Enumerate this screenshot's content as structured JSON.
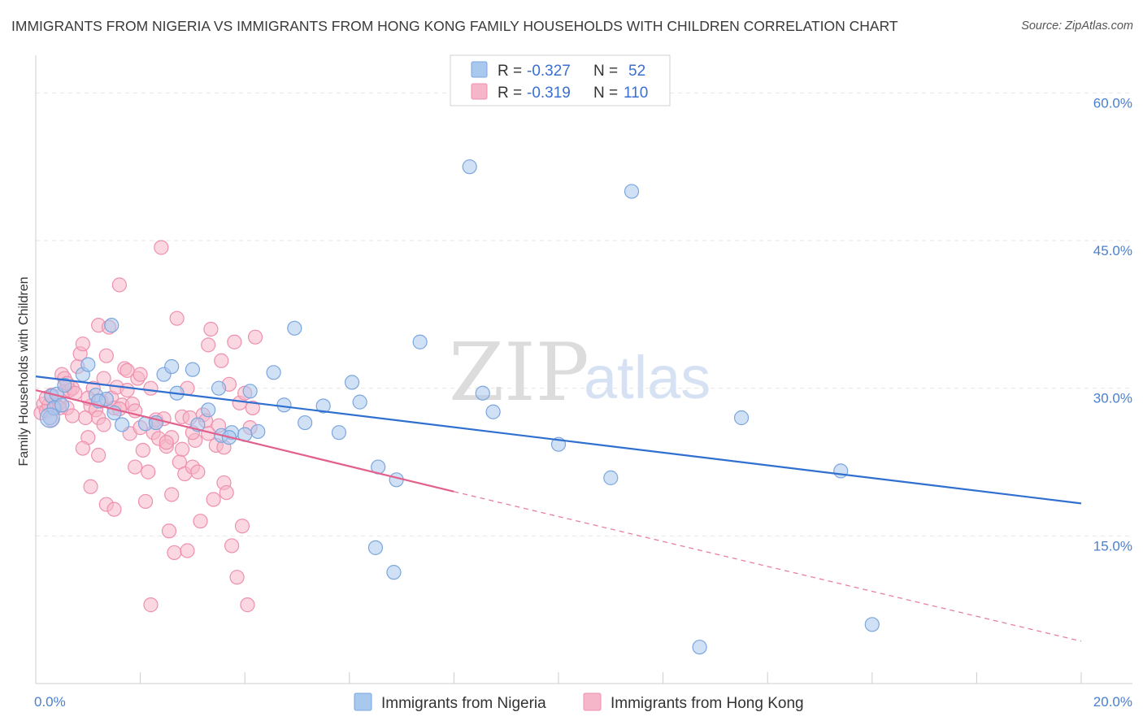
{
  "title": "IMMIGRANTS FROM NIGERIA VS IMMIGRANTS FROM HONG KONG FAMILY HOUSEHOLDS WITH CHILDREN CORRELATION CHART",
  "source": "Source: ZipAtlas.com",
  "watermark": {
    "zip": "ZIP",
    "atlas": "atlas"
  },
  "legend": {
    "rows": [
      {
        "r_label": "R = ",
        "r_value": "-0.327",
        "n_label": "N = ",
        "n_value": "52"
      },
      {
        "r_label": "R = ",
        "r_value": "-0.319",
        "n_label": "N = ",
        "n_value": "110"
      }
    ]
  },
  "colors": {
    "nigeria_fill": "#a9c8ee",
    "nigeria_stroke": "#7ba6dd",
    "nigeria_line": "#2f6fd0",
    "hongkong_fill": "#f6b6c9",
    "hongkong_stroke": "#ee90ae",
    "hongkong_line": "#e2608b",
    "tick_text": "#4a7fd0",
    "grid": "#e6e6e6"
  },
  "chart_data": {
    "type": "scatter",
    "title": "IMMIGRANTS FROM NIGERIA VS IMMIGRANTS FROM HONG KONG FAMILY HOUSEHOLDS WITH CHILDREN CORRELATION CHART",
    "xlabel": "",
    "ylabel": "Family Households with Children",
    "xlim": [
      0,
      20
    ],
    "ylim": [
      0,
      63
    ],
    "x_ticks": [
      "0.0%",
      "20.0%"
    ],
    "y_ticks": [
      {
        "value": 15,
        "label": "15.0%"
      },
      {
        "value": 30,
        "label": "30.0%"
      },
      {
        "value": 45,
        "label": "45.0%"
      },
      {
        "value": 60,
        "label": "60.0%"
      }
    ],
    "grid": true,
    "series": [
      {
        "name": "Immigrants from Nigeria",
        "r": -0.327,
        "n": 52,
        "trend": {
          "x0": 0,
          "y0": 31.2,
          "x1": 20,
          "y1": 18.3
        },
        "points": [
          [
            0.27,
            27.0
          ],
          [
            0.3,
            29.2
          ],
          [
            0.35,
            28.0
          ],
          [
            0.4,
            29.4
          ],
          [
            0.55,
            30.3
          ],
          [
            0.9,
            31.4
          ],
          [
            1.0,
            32.4
          ],
          [
            1.15,
            29.3
          ],
          [
            1.35,
            28.9
          ],
          [
            1.45,
            36.4
          ],
          [
            1.65,
            26.3
          ],
          [
            2.1,
            26.4
          ],
          [
            2.45,
            31.4
          ],
          [
            2.6,
            32.2
          ],
          [
            2.7,
            29.5
          ],
          [
            3.0,
            31.9
          ],
          [
            3.1,
            26.3
          ],
          [
            3.3,
            27.8
          ],
          [
            3.5,
            30.0
          ],
          [
            3.55,
            25.2
          ],
          [
            3.75,
            25.5
          ],
          [
            4.1,
            29.7
          ],
          [
            4.25,
            25.6
          ],
          [
            4.55,
            31.6
          ],
          [
            4.75,
            28.3
          ],
          [
            4.95,
            36.1
          ],
          [
            5.15,
            26.5
          ],
          [
            5.5,
            28.2
          ],
          [
            5.8,
            25.5
          ],
          [
            6.05,
            30.6
          ],
          [
            6.2,
            28.6
          ],
          [
            6.55,
            22.0
          ],
          [
            6.9,
            20.7
          ],
          [
            7.35,
            34.7
          ],
          [
            8.3,
            52.5
          ],
          [
            8.55,
            29.5
          ],
          [
            8.75,
            27.6
          ],
          [
            10.0,
            24.3
          ],
          [
            11.0,
            20.9
          ],
          [
            11.4,
            50.0
          ],
          [
            13.5,
            27.0
          ],
          [
            15.4,
            21.6
          ],
          [
            16.0,
            6.0
          ],
          [
            6.5,
            13.8
          ],
          [
            6.85,
            11.3
          ],
          [
            12.7,
            3.7
          ],
          [
            1.5,
            27.5
          ],
          [
            3.7,
            25.0
          ],
          [
            0.5,
            28.3
          ],
          [
            1.2,
            28.7
          ],
          [
            2.3,
            26.5
          ],
          [
            4.0,
            25.3
          ]
        ]
      },
      {
        "name": "Immigrants from Hong Kong",
        "r": -0.319,
        "n": 110,
        "trend": {
          "x0": 0,
          "y0": 29.8,
          "x1": 8.0,
          "y1": 19.5
        },
        "trend_dashed": {
          "x0": 8.0,
          "y0": 19.5,
          "x1": 20,
          "y1": 4.3
        },
        "points": [
          [
            0.1,
            27.5
          ],
          [
            0.15,
            28.4
          ],
          [
            0.2,
            27.7
          ],
          [
            0.25,
            28.3
          ],
          [
            0.3,
            29.3
          ],
          [
            0.35,
            27.9
          ],
          [
            0.4,
            28.2
          ],
          [
            0.45,
            28.5
          ],
          [
            0.5,
            31.4
          ],
          [
            0.55,
            29.7
          ],
          [
            0.6,
            28.0
          ],
          [
            0.65,
            29.8
          ],
          [
            0.7,
            30.0
          ],
          [
            0.75,
            29.5
          ],
          [
            0.8,
            32.2
          ],
          [
            0.85,
            33.5
          ],
          [
            0.9,
            34.5
          ],
          [
            0.95,
            27.0
          ],
          [
            1.0,
            25.0
          ],
          [
            1.05,
            28.2
          ],
          [
            1.1,
            30.0
          ],
          [
            1.15,
            27.8
          ],
          [
            1.2,
            36.4
          ],
          [
            1.25,
            28.7
          ],
          [
            1.3,
            31.0
          ],
          [
            1.35,
            33.3
          ],
          [
            1.4,
            36.2
          ],
          [
            1.45,
            29.0
          ],
          [
            1.5,
            28.0
          ],
          [
            1.55,
            30.1
          ],
          [
            1.6,
            40.5
          ],
          [
            1.65,
            28.3
          ],
          [
            1.7,
            32.0
          ],
          [
            1.75,
            29.8
          ],
          [
            1.8,
            25.4
          ],
          [
            1.85,
            28.4
          ],
          [
            1.9,
            27.7
          ],
          [
            1.95,
            31.0
          ],
          [
            2.0,
            26.0
          ],
          [
            2.05,
            23.7
          ],
          [
            2.1,
            18.5
          ],
          [
            2.15,
            21.5
          ],
          [
            2.2,
            30.0
          ],
          [
            2.25,
            25.5
          ],
          [
            2.3,
            26.8
          ],
          [
            2.35,
            24.9
          ],
          [
            2.4,
            44.3
          ],
          [
            2.45,
            26.9
          ],
          [
            2.5,
            24.1
          ],
          [
            2.55,
            15.5
          ],
          [
            2.6,
            25.0
          ],
          [
            2.65,
            13.3
          ],
          [
            2.7,
            37.1
          ],
          [
            2.75,
            22.5
          ],
          [
            2.8,
            27.1
          ],
          [
            2.85,
            21.3
          ],
          [
            2.9,
            30.0
          ],
          [
            2.95,
            27.0
          ],
          [
            3.0,
            22.0
          ],
          [
            3.05,
            24.7
          ],
          [
            3.1,
            21.5
          ],
          [
            3.15,
            16.5
          ],
          [
            3.2,
            27.3
          ],
          [
            3.25,
            26.7
          ],
          [
            3.3,
            34.4
          ],
          [
            3.35,
            36.0
          ],
          [
            3.4,
            18.7
          ],
          [
            3.45,
            24.2
          ],
          [
            3.5,
            26.2
          ],
          [
            3.55,
            32.8
          ],
          [
            3.6,
            20.4
          ],
          [
            3.65,
            19.4
          ],
          [
            3.7,
            30.4
          ],
          [
            3.75,
            14.0
          ],
          [
            3.8,
            34.7
          ],
          [
            3.85,
            10.8
          ],
          [
            3.9,
            28.5
          ],
          [
            3.95,
            16.0
          ],
          [
            4.0,
            29.5
          ],
          [
            4.05,
            8.0
          ],
          [
            1.05,
            20.0
          ],
          [
            1.2,
            23.2
          ],
          [
            1.35,
            18.2
          ],
          [
            0.9,
            23.9
          ],
          [
            2.2,
            8.0
          ],
          [
            2.9,
            13.5
          ],
          [
            4.2,
            35.2
          ],
          [
            1.5,
            17.7
          ],
          [
            0.55,
            31.0
          ],
          [
            2.6,
            19.2
          ],
          [
            3.3,
            25.4
          ],
          [
            0.7,
            27.2
          ],
          [
            0.3,
            26.8
          ],
          [
            1.9,
            22.0
          ],
          [
            2.8,
            23.8
          ],
          [
            0.45,
            28.0
          ],
          [
            1.0,
            29.0
          ],
          [
            1.6,
            27.9
          ],
          [
            2.3,
            26.5
          ],
          [
            3.0,
            25.5
          ],
          [
            3.6,
            24.0
          ],
          [
            4.1,
            26.0
          ],
          [
            4.15,
            28.0
          ],
          [
            0.2,
            29.0
          ],
          [
            1.2,
            27.0
          ],
          [
            1.75,
            31.8
          ],
          [
            2.5,
            24.5
          ],
          [
            2.0,
            31.4
          ],
          [
            1.3,
            26.3
          ],
          [
            0.6,
            30.5
          ]
        ]
      }
    ]
  },
  "bottom_legend": [
    {
      "label": "Immigrants from Nigeria"
    },
    {
      "label": "Immigrants from Hong Kong"
    }
  ]
}
